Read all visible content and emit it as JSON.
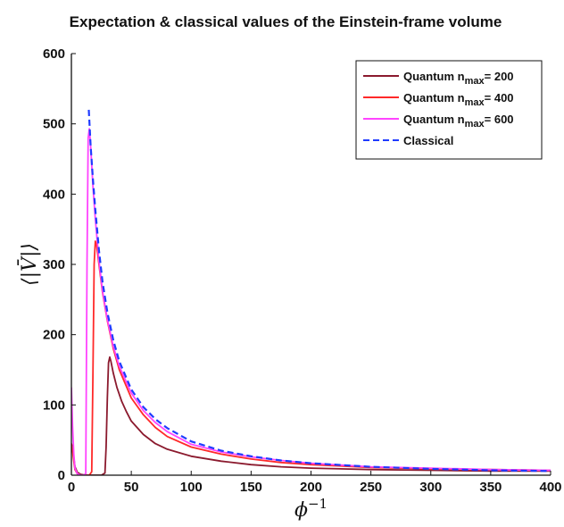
{
  "chart_data": {
    "type": "line",
    "title": "Expectation & classical values of the Einstein-frame volume",
    "xlabel_base": "ϕ",
    "xlabel_sup": "−1",
    "ylabel": "⟨|V̄|⟩",
    "xlim": [
      0,
      400
    ],
    "ylim": [
      0,
      600
    ],
    "xticks": [
      "0",
      "50",
      "100",
      "150",
      "200",
      "250",
      "300",
      "350",
      "400"
    ],
    "yticks": [
      "0",
      "100",
      "200",
      "300",
      "400",
      "500",
      "600"
    ],
    "grid": false,
    "legend_position": "top-right",
    "series": [
      {
        "legend_base": "Quantum n",
        "legend_sub": "max",
        "legend_suffix": "= 200",
        "color": "#8b1a2e",
        "dash": "solid",
        "x": [
          0,
          1,
          2,
          3,
          5,
          8,
          12,
          16,
          20,
          25,
          28,
          29,
          30,
          31,
          32,
          33,
          35,
          38,
          42,
          46,
          50,
          60,
          70,
          80,
          100,
          125,
          150,
          175,
          200,
          250,
          300,
          350,
          400
        ],
        "y": [
          45,
          40,
          25,
          12,
          4,
          1,
          0,
          0,
          0,
          0,
          3,
          40,
          110,
          160,
          168,
          162,
          145,
          125,
          105,
          90,
          77,
          58,
          45,
          37,
          27,
          20,
          15,
          12,
          10,
          8,
          7,
          6,
          6
        ]
      },
      {
        "legend_base": "Quantum n",
        "legend_sub": "max",
        "legend_suffix": "= 400",
        "color": "#ff2a2a",
        "dash": "solid",
        "x": [
          0,
          1,
          2,
          3,
          5,
          8,
          12,
          15,
          17,
          18,
          19,
          20,
          21,
          23,
          26,
          30,
          35,
          40,
          50,
          60,
          70,
          80,
          100,
          125,
          150,
          175,
          200,
          250,
          300,
          350,
          400
        ],
        "y": [
          45,
          35,
          20,
          8,
          2,
          0,
          0,
          0,
          5,
          150,
          300,
          333,
          328,
          300,
          260,
          220,
          180,
          150,
          110,
          86,
          68,
          55,
          40,
          30,
          23,
          18,
          15,
          11,
          9,
          8,
          7
        ]
      },
      {
        "legend_base": "Quantum n",
        "legend_sub": "max",
        "legend_suffix": "= 600",
        "color": "#ff44ff",
        "dash": "solid",
        "x": [
          0,
          1,
          2,
          3,
          5,
          8,
          10,
          12,
          13,
          14,
          15,
          16,
          18,
          20,
          23,
          26,
          30,
          35,
          40,
          50,
          60,
          70,
          80,
          100,
          125,
          150,
          175,
          200,
          250,
          300,
          350,
          400
        ],
        "y": [
          125,
          70,
          30,
          10,
          2,
          0,
          0,
          2,
          300,
          480,
          493,
          470,
          410,
          365,
          305,
          262,
          222,
          183,
          155,
          117,
          92,
          75,
          62,
          44,
          33,
          26,
          21,
          17,
          12,
          10,
          8,
          7
        ]
      },
      {
        "legend_base": "Classical",
        "legend_sub": "",
        "legend_suffix": "",
        "color": "#1f3bff",
        "dash": "dashed",
        "x": [
          14.5,
          16,
          18,
          20,
          23,
          26,
          30,
          35,
          40,
          50,
          60,
          70,
          80,
          100,
          125,
          150,
          175,
          200,
          250,
          300,
          350,
          400
        ],
        "y": [
          520,
          470,
          420,
          378,
          320,
          275,
          232,
          192,
          162,
          122,
          97,
          80,
          67,
          48,
          35,
          27,
          21,
          17,
          12,
          9,
          7,
          6
        ]
      }
    ]
  }
}
